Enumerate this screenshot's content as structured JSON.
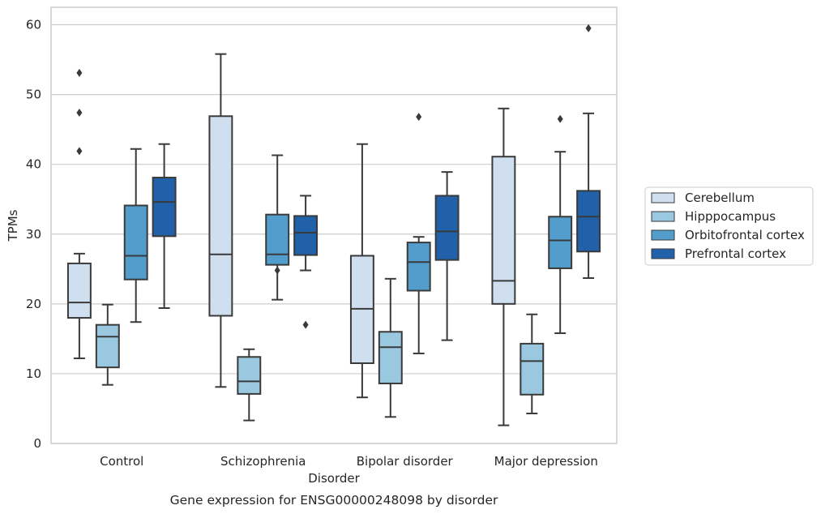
{
  "chart_data": {
    "type": "box",
    "title": "Gene expression for ENSG00000248098 by disorder",
    "xlabel": "Disorder",
    "ylabel": "TPMs",
    "ylim": [
      0,
      62.5
    ],
    "yticks": [
      0,
      10,
      20,
      30,
      40,
      50,
      60
    ],
    "grid": "horizontal",
    "legend_position": "right",
    "categories": [
      "Control",
      "Schizophrenia",
      "Bipolar disorder",
      "Major depression"
    ],
    "series": [
      {
        "name": "Cerebellum",
        "color": "#d0dfef",
        "boxes": [
          {
            "min": 12.2,
            "q1": 18.0,
            "median": 20.2,
            "q3": 25.8,
            "max": 27.2,
            "outliers": [
              41.9,
              47.4,
              53.1
            ]
          },
          {
            "min": 8.1,
            "q1": 18.3,
            "median": 27.1,
            "q3": 46.9,
            "max": 55.8,
            "outliers": []
          },
          {
            "min": 6.6,
            "q1": 11.5,
            "median": 19.3,
            "q3": 26.9,
            "max": 42.9,
            "outliers": []
          },
          {
            "min": 2.6,
            "q1": 20.0,
            "median": 23.3,
            "q3": 41.1,
            "max": 48.0,
            "outliers": []
          }
        ]
      },
      {
        "name": "Hipppocampus",
        "color": "#9ac8e0",
        "boxes": [
          {
            "min": 8.4,
            "q1": 10.9,
            "median": 15.3,
            "q3": 17.0,
            "max": 19.9,
            "outliers": []
          },
          {
            "min": 3.3,
            "q1": 7.1,
            "median": 8.9,
            "q3": 12.4,
            "max": 13.5,
            "outliers": []
          },
          {
            "min": 3.8,
            "q1": 8.6,
            "median": 13.8,
            "q3": 16.0,
            "max": 23.6,
            "outliers": []
          },
          {
            "min": 4.3,
            "q1": 7.0,
            "median": 11.8,
            "q3": 14.3,
            "max": 18.5,
            "outliers": []
          }
        ]
      },
      {
        "name": "Orbitofrontal cortex",
        "color": "#529dcc",
        "boxes": [
          {
            "min": 17.4,
            "q1": 23.5,
            "median": 26.9,
            "q3": 34.1,
            "max": 42.2,
            "outliers": []
          },
          {
            "min": 20.6,
            "q1": 25.6,
            "median": 27.1,
            "q3": 32.8,
            "max": 41.3,
            "outliers": [
              24.8
            ]
          },
          {
            "min": 12.9,
            "q1": 21.9,
            "median": 26.0,
            "q3": 28.8,
            "max": 29.6,
            "outliers": [
              46.8
            ]
          },
          {
            "min": 15.8,
            "q1": 25.1,
            "median": 29.1,
            "q3": 32.5,
            "max": 41.8,
            "outliers": [
              46.5
            ]
          }
        ]
      },
      {
        "name": "Prefrontal cortex",
        "color": "#2061a9",
        "boxes": [
          {
            "min": 19.4,
            "q1": 29.7,
            "median": 34.6,
            "q3": 38.1,
            "max": 42.9,
            "outliers": []
          },
          {
            "min": 24.8,
            "q1": 27.0,
            "median": 30.2,
            "q3": 32.6,
            "max": 35.5,
            "outliers": [
              17.0
            ]
          },
          {
            "min": 14.8,
            "q1": 26.3,
            "median": 30.4,
            "q3": 35.5,
            "max": 38.9,
            "outliers": []
          },
          {
            "min": 23.7,
            "q1": 27.5,
            "median": 32.5,
            "q3": 36.2,
            "max": 47.3,
            "outliers": [
              59.5
            ]
          }
        ]
      }
    ]
  }
}
